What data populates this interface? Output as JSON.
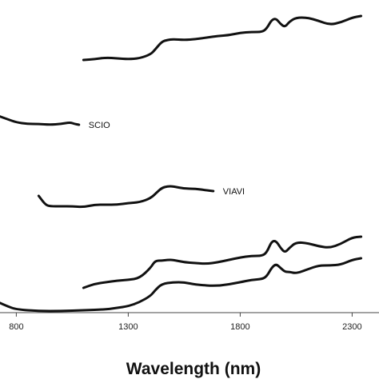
{
  "chart_data": {
    "type": "line",
    "title": "",
    "xlabel": "Wavelength (nm)",
    "ylabel": "",
    "xlim": [
      720,
      2340
    ],
    "xticks": [
      800,
      1300,
      1800,
      2300
    ],
    "grid": false,
    "legend": "none",
    "line_color": "#111111",
    "series": [
      {
        "name": "",
        "x": [
          1100,
          1150,
          1200,
          1250,
          1300,
          1350,
          1400,
          1420,
          1450,
          1475,
          1500,
          1550,
          1600,
          1650,
          1700,
          1750,
          1800,
          1850,
          1900,
          1920,
          1940,
          1960,
          1980,
          2000,
          2020,
          2050,
          2100,
          2150,
          2200,
          2250,
          2300,
          2340
        ],
        "y": [
          75,
          74,
          72,
          73,
          74,
          73,
          68,
          62,
          52,
          50,
          49,
          50,
          49,
          47,
          45,
          44,
          41,
          40,
          40,
          35,
          25,
          23,
          30,
          34,
          27,
          22,
          22,
          26,
          31,
          28,
          22,
          20
        ]
      },
      {
        "name": "SCIO",
        "x": [
          720,
          760,
          800,
          850,
          900,
          950,
          1000,
          1040,
          1060,
          1080
        ],
        "y": [
          145,
          149,
          153,
          155,
          155,
          156,
          155,
          153,
          155,
          156
        ]
      },
      {
        "name": "VIAVI",
        "x": [
          900,
          930,
          950,
          1000,
          1050,
          1100,
          1150,
          1200,
          1250,
          1300,
          1350,
          1400,
          1430,
          1450,
          1475,
          1500,
          1550,
          1600,
          1650,
          1680
        ],
        "y": [
          245,
          256,
          258,
          258,
          258,
          259,
          256,
          256,
          256,
          254,
          253,
          248,
          240,
          235,
          233,
          233,
          236,
          236,
          238,
          239
        ]
      },
      {
        "name": "",
        "x": [
          1100,
          1150,
          1200,
          1250,
          1300,
          1350,
          1400,
          1420,
          1450,
          1475,
          1500,
          1550,
          1600,
          1650,
          1700,
          1750,
          1800,
          1850,
          1900,
          1920,
          1940,
          1960,
          1980,
          2000,
          2020,
          2050,
          2100,
          2150,
          2200,
          2250,
          2300,
          2340
        ],
        "y": [
          360,
          355,
          353,
          351,
          350,
          348,
          335,
          326,
          326,
          325,
          325,
          328,
          329,
          330,
          328,
          325,
          322,
          320,
          320,
          315,
          302,
          301,
          310,
          316,
          310,
          303,
          304,
          308,
          310,
          305,
          297,
          296
        ]
      },
      {
        "name": "",
        "x": [
          720,
          760,
          800,
          900,
          1000,
          1100,
          1200,
          1250,
          1300,
          1350,
          1400,
          1420,
          1450,
          1500,
          1550,
          1600,
          1700,
          1800,
          1850,
          1900,
          1920,
          1940,
          1960,
          1980,
          2000,
          2020,
          2050,
          2100,
          2150,
          2200,
          2250,
          2300,
          2340
        ],
        "y": [
          378,
          383,
          387,
          389,
          389,
          388,
          387,
          385,
          383,
          378,
          370,
          363,
          355,
          353,
          353,
          356,
          358,
          353,
          350,
          349,
          345,
          335,
          330,
          335,
          340,
          340,
          342,
          337,
          332,
          332,
          331,
          325,
          323
        ]
      }
    ]
  }
}
